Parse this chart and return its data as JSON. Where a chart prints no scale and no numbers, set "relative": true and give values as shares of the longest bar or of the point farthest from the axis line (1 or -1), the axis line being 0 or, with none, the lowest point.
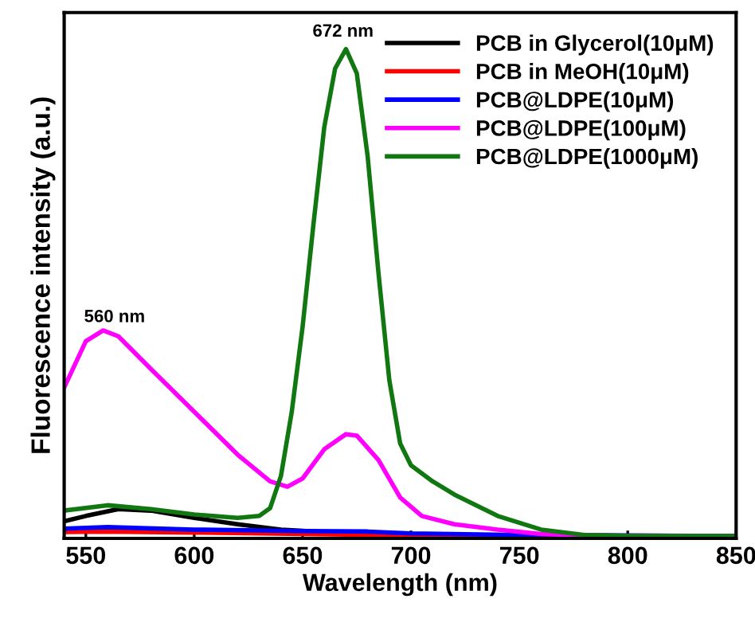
{
  "chart_data": {
    "type": "line",
    "relative": true,
    "xlabel": "Wavelength (nm)",
    "ylabel": "Fluorescence intensity (a.u.)",
    "xlim": [
      540,
      850
    ],
    "xticks": [
      550,
      600,
      650,
      700,
      750,
      800,
      850
    ],
    "legend": "top right",
    "grid": false,
    "annotations": [
      "560 nm",
      "672 nm"
    ],
    "series": [
      {
        "name": "PCB in Glycerol(10μM)",
        "color": "#000000",
        "x": [
          540,
          550,
          565,
          580,
          600,
          620,
          640,
          660,
          700,
          750,
          850
        ],
        "values": [
          0.03,
          0.041,
          0.055,
          0.052,
          0.037,
          0.024,
          0.013,
          0.008,
          0.002,
          0.001,
          0
        ]
      },
      {
        "name": "PCB in MeOH(10μM)",
        "color": "#ff0000",
        "x": [
          540,
          560,
          600,
          650,
          700,
          850
        ],
        "values": [
          0.008,
          0.009,
          0.007,
          0.004,
          0.001,
          0
        ]
      },
      {
        "name": "PCB@LDPE(10μM)",
        "color": "#0000ff",
        "x": [
          540,
          560,
          600,
          650,
          680,
          700,
          750,
          850
        ],
        "values": [
          0.015,
          0.018,
          0.013,
          0.01,
          0.009,
          0.005,
          0.002,
          0
        ]
      },
      {
        "name": "PCB@LDPE(100μM)",
        "color": "#ff00ff",
        "x": [
          540,
          550,
          558,
          565,
          580,
          600,
          620,
          635,
          643,
          650,
          660,
          670,
          675,
          685,
          695,
          705,
          720,
          740,
          760,
          780,
          800,
          850
        ],
        "values": [
          0.305,
          0.4,
          0.422,
          0.41,
          0.343,
          0.255,
          0.167,
          0.112,
          0.101,
          0.118,
          0.178,
          0.209,
          0.206,
          0.156,
          0.079,
          0.041,
          0.024,
          0.013,
          0.004,
          0.001,
          0,
          0
        ]
      },
      {
        "name": "PCB@LDPE(1000μM)",
        "color": "#117711",
        "x": [
          540,
          560,
          580,
          600,
          620,
          630,
          635,
          640,
          645,
          650,
          655,
          660,
          665,
          670,
          675,
          680,
          685,
          690,
          695,
          700,
          710,
          720,
          740,
          760,
          780,
          800,
          850
        ],
        "values": [
          0.052,
          0.063,
          0.055,
          0.044,
          0.037,
          0.041,
          0.057,
          0.123,
          0.255,
          0.43,
          0.64,
          0.84,
          0.96,
          1.0,
          0.95,
          0.78,
          0.54,
          0.32,
          0.19,
          0.145,
          0.112,
          0.085,
          0.041,
          0.013,
          0.002,
          0,
          0
        ]
      }
    ]
  }
}
